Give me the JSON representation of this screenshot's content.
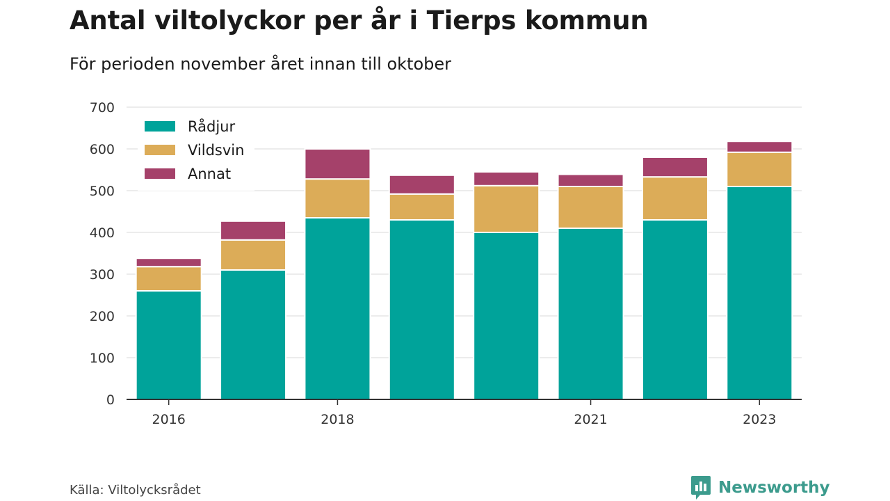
{
  "title": "Antal viltolyckor per år i Tierps kommun",
  "subtitle": "För perioden november året innan till oktober",
  "source": "Källa: Viltolycksrådet",
  "brand": {
    "name": "Newsworthy",
    "color": "#3c9b8d",
    "icon": "newsworthy-logo-icon"
  },
  "chart_data": {
    "type": "bar",
    "stacked": true,
    "categories": [
      "2016",
      "2017",
      "2018",
      "2019",
      "2020",
      "2021",
      "2022",
      "2023"
    ],
    "x_tick_labels": [
      "2016",
      "2018",
      "2021",
      "2023"
    ],
    "ylim": [
      0,
      700
    ],
    "y_ticks": [
      0,
      100,
      200,
      300,
      400,
      500,
      600,
      700
    ],
    "grid": true,
    "legend": {
      "placement": "top-left"
    },
    "series": [
      {
        "name": "Rådjur",
        "color": "#00a39a",
        "values": [
          260,
          310,
          435,
          430,
          400,
          410,
          430,
          510
        ]
      },
      {
        "name": "Vildsvin",
        "color": "#dcac58",
        "values": [
          58,
          72,
          93,
          62,
          112,
          100,
          103,
          82
        ]
      },
      {
        "name": "Annat",
        "color": "#a5416a",
        "values": [
          20,
          45,
          72,
          45,
          33,
          29,
          47,
          26
        ]
      }
    ]
  }
}
